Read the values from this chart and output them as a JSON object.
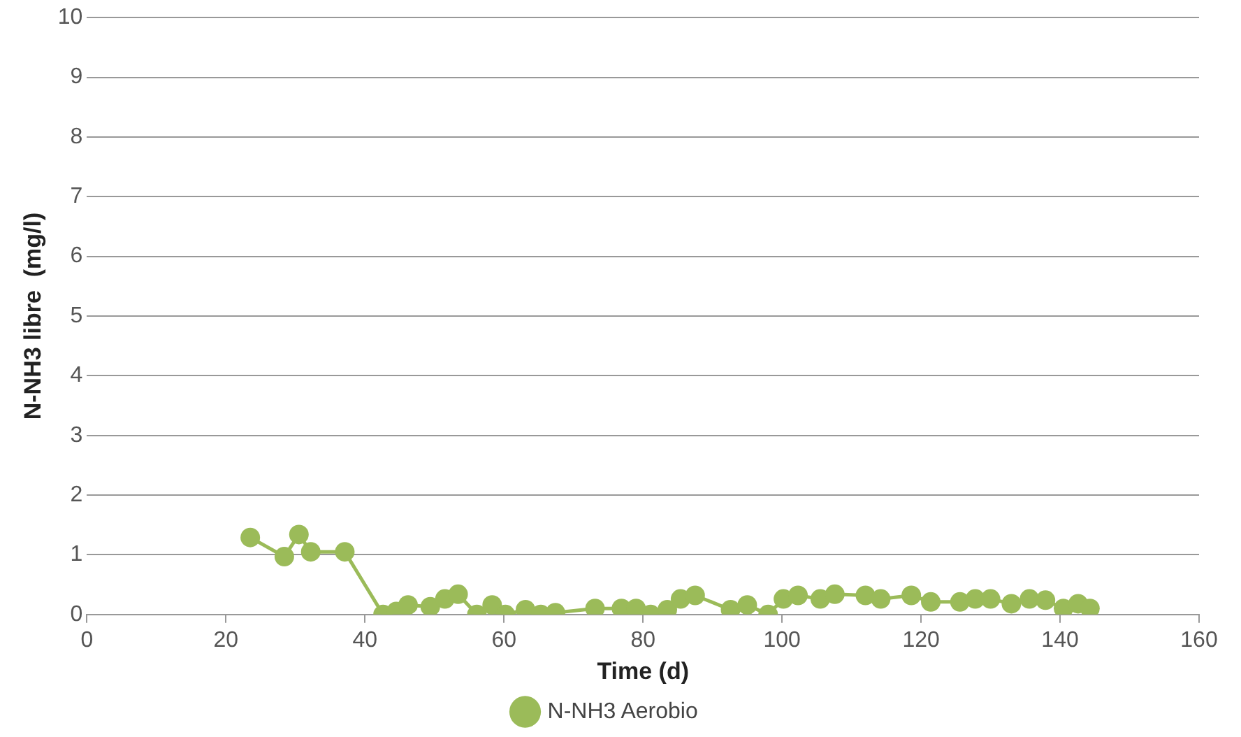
{
  "chart_data": {
    "type": "line",
    "xlabel": "Time (d)",
    "ylabel": "N-NH3 libre  (mg/l)",
    "xlim": [
      0,
      160
    ],
    "xticks": [
      0,
      20,
      40,
      60,
      80,
      100,
      120,
      140,
      160
    ],
    "ylim": [
      0,
      10
    ],
    "yticks": [
      0,
      1,
      2,
      3,
      4,
      5,
      6,
      7,
      8,
      9,
      10
    ],
    "grid": "y",
    "legend": "bottom",
    "marker": "circle",
    "line_style": "solid",
    "series": [
      {
        "name": "N-NH3 Aerobio",
        "color": "#9bbb59",
        "x": [
          23.5,
          28.4,
          30.5,
          32.2,
          37.1,
          42.6,
          44.5,
          46.2,
          49.4,
          51.5,
          53.4,
          56.1,
          58.3,
          60.2,
          63.1,
          65.3,
          67.4,
          73.1,
          76.9,
          79,
          81.1,
          83.5,
          85.4,
          87.5,
          92.6,
          95,
          98,
          100.2,
          102.3,
          105.5,
          107.6,
          112,
          114.2,
          118.6,
          121.4,
          125.6,
          127.8,
          130,
          133,
          135.6,
          137.9,
          140.5,
          142.6,
          144.3
        ],
        "values": [
          1.29,
          0.97,
          1.34,
          1.05,
          1.05,
          0,
          0.05,
          0.16,
          0.13,
          0.26,
          0.34,
          0,
          0.16,
          0,
          0.08,
          0,
          0.03,
          0.1,
          0.1,
          0.1,
          0,
          0.08,
          0.26,
          0.32,
          0.08,
          0.16,
          0,
          0.26,
          0.32,
          0.26,
          0.34,
          0.32,
          0.26,
          0.32,
          0.21,
          0.21,
          0.26,
          0.26,
          0.18,
          0.26,
          0.24,
          0.1,
          0.18,
          0.1
        ]
      }
    ]
  }
}
